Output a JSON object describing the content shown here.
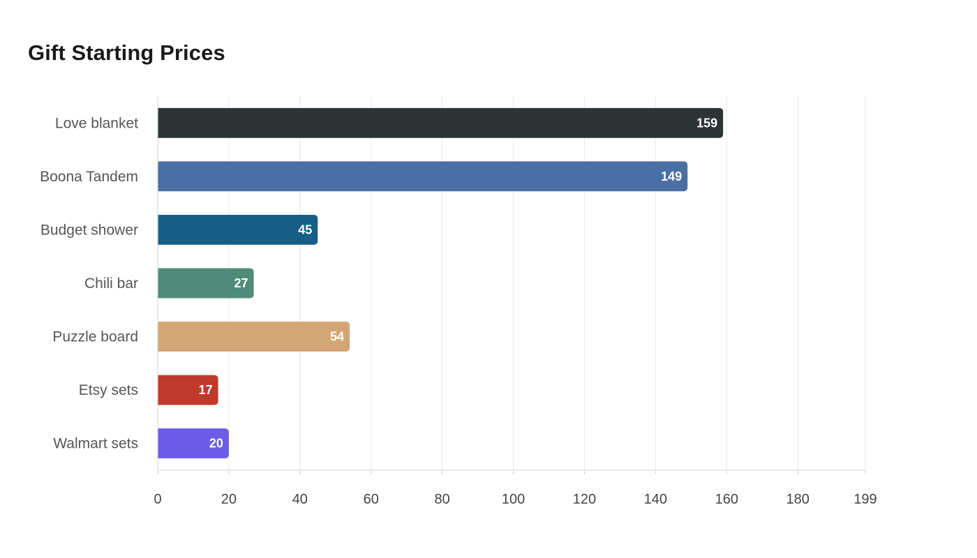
{
  "chart_data": {
    "type": "bar",
    "orientation": "horizontal",
    "title": "Gift Starting Prices",
    "xlabel": "",
    "ylabel": "",
    "categories": [
      "Love blanket",
      "Boona Tandem",
      "Budget shower",
      "Chili bar",
      "Puzzle board",
      "Etsy sets",
      "Walmart sets"
    ],
    "values": [
      159,
      149,
      45,
      27,
      54,
      17,
      20
    ],
    "colors": [
      "#2d3436",
      "#4a6fa5",
      "#175e87",
      "#4e8b78",
      "#d4a574",
      "#c0392b",
      "#6c5ce7"
    ],
    "xlim": [
      0,
      199
    ],
    "xticks": [
      0,
      20,
      40,
      60,
      80,
      100,
      120,
      140,
      160,
      180,
      199
    ],
    "grid": "vertical",
    "legend": "none"
  }
}
